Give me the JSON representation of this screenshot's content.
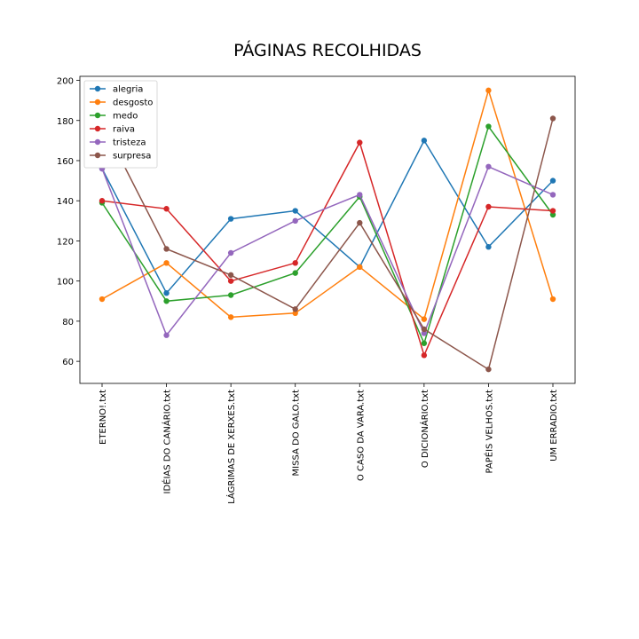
{
  "chart_data": {
    "type": "line",
    "title": "PÁGINAS RECOLHIDAS",
    "xlabel": "",
    "ylabel": "",
    "categories": [
      "ETERNO!.txt",
      "IDÉIAS DO CANÁRIO.txt",
      "LÁGRIMAS DE XERXES.txt",
      "MISSA DO GALO.txt",
      "O CASO DA VARA.txt",
      "O DICIONÁRIO.txt",
      "PAPÉIS VELHOS.txt",
      "UM ERRADIO.txt"
    ],
    "ylim": [
      49,
      202
    ],
    "yticks": [
      60,
      80,
      100,
      120,
      140,
      160,
      180,
      200
    ],
    "grid": false,
    "legend_position": "top-left",
    "series": [
      {
        "name": "alegria",
        "color": "#1f77b4",
        "values": [
          156,
          94,
          131,
          135,
          107,
          170,
          117,
          150
        ]
      },
      {
        "name": "desgosto",
        "color": "#ff7f0e",
        "values": [
          91,
          109,
          82,
          84,
          107,
          81,
          195,
          91
        ]
      },
      {
        "name": "medo",
        "color": "#2ca02c",
        "values": [
          139,
          90,
          93,
          104,
          142,
          69,
          177,
          133
        ]
      },
      {
        "name": "raiva",
        "color": "#d62728",
        "values": [
          140,
          136,
          100,
          109,
          169,
          63,
          137,
          135
        ]
      },
      {
        "name": "tristeza",
        "color": "#9467bd",
        "values": [
          156,
          73,
          114,
          130,
          143,
          74,
          157,
          143
        ]
      },
      {
        "name": "surpresa",
        "color": "#8c564b",
        "values": [
          179,
          116,
          103,
          86,
          129,
          76,
          56,
          181
        ]
      }
    ]
  }
}
